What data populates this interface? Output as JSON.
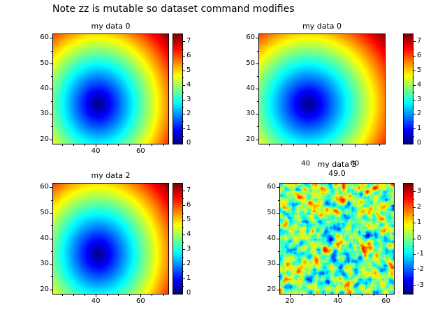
{
  "figure": {
    "title": "Note zz is mutable so dataset command modifies"
  },
  "chart_data": [
    {
      "type": "heatmap",
      "title": "my data 0",
      "x_range": [
        21,
        72
      ],
      "y_range": [
        18.5,
        61.5
      ],
      "x_major_ticks": [
        40,
        60
      ],
      "y_major_ticks": [
        20,
        30,
        40,
        50,
        60
      ],
      "colormap": "jet",
      "colorbar": {
        "vmin": 0,
        "vmax": 7.5,
        "ticks": [
          0,
          1,
          2,
          3,
          4,
          5,
          6,
          7
        ]
      },
      "field": {
        "kind": "radial-distance",
        "center": [
          41,
          34
        ],
        "scale": 0.179
      }
    },
    {
      "type": "heatmap",
      "title": "my data 0",
      "x_range": [
        21,
        72
      ],
      "y_range": [
        18.5,
        61.5
      ],
      "x_major_ticks": [
        40,
        60
      ],
      "y_major_ticks": [
        20,
        30,
        40,
        50,
        60
      ],
      "colormap": "jet",
      "colorbar": {
        "vmin": 0,
        "vmax": 7.5,
        "ticks": [
          0,
          1,
          2,
          3,
          4,
          5,
          6,
          7
        ]
      },
      "field": {
        "kind": "radial-distance",
        "center": [
          41,
          34
        ],
        "scale": 0.179
      }
    },
    {
      "type": "heatmap",
      "title": "my data 2",
      "x_range": [
        21,
        72
      ],
      "y_range": [
        18.5,
        61.5
      ],
      "x_major_ticks": [
        40,
        60
      ],
      "y_major_ticks": [
        20,
        30,
        40,
        50,
        60
      ],
      "colormap": "jet",
      "colorbar": {
        "vmin": 0,
        "vmax": 7.5,
        "ticks": [
          0,
          1,
          2,
          3,
          4,
          5,
          6,
          7
        ]
      },
      "field": {
        "kind": "radial-distance",
        "center": [
          41,
          34
        ],
        "scale": 0.179
      }
    },
    {
      "type": "heatmap",
      "title": "my data 3",
      "subtitle": "49.0",
      "x_range": [
        16,
        63
      ],
      "y_range": [
        18.5,
        61.5
      ],
      "x_major_ticks": [
        20,
        40,
        60
      ],
      "y_major_ticks": [
        20,
        30,
        40,
        50,
        60
      ],
      "colormap": "jet",
      "colorbar": {
        "vmin": -3.5,
        "vmax": 3.5,
        "ticks": [
          -3,
          -2,
          -1,
          0,
          1,
          2,
          3
        ]
      },
      "field": {
        "kind": "random-noise",
        "seed": 7,
        "grid": [
          64,
          56
        ],
        "gain": 5,
        "quantize": 0.5
      }
    }
  ]
}
